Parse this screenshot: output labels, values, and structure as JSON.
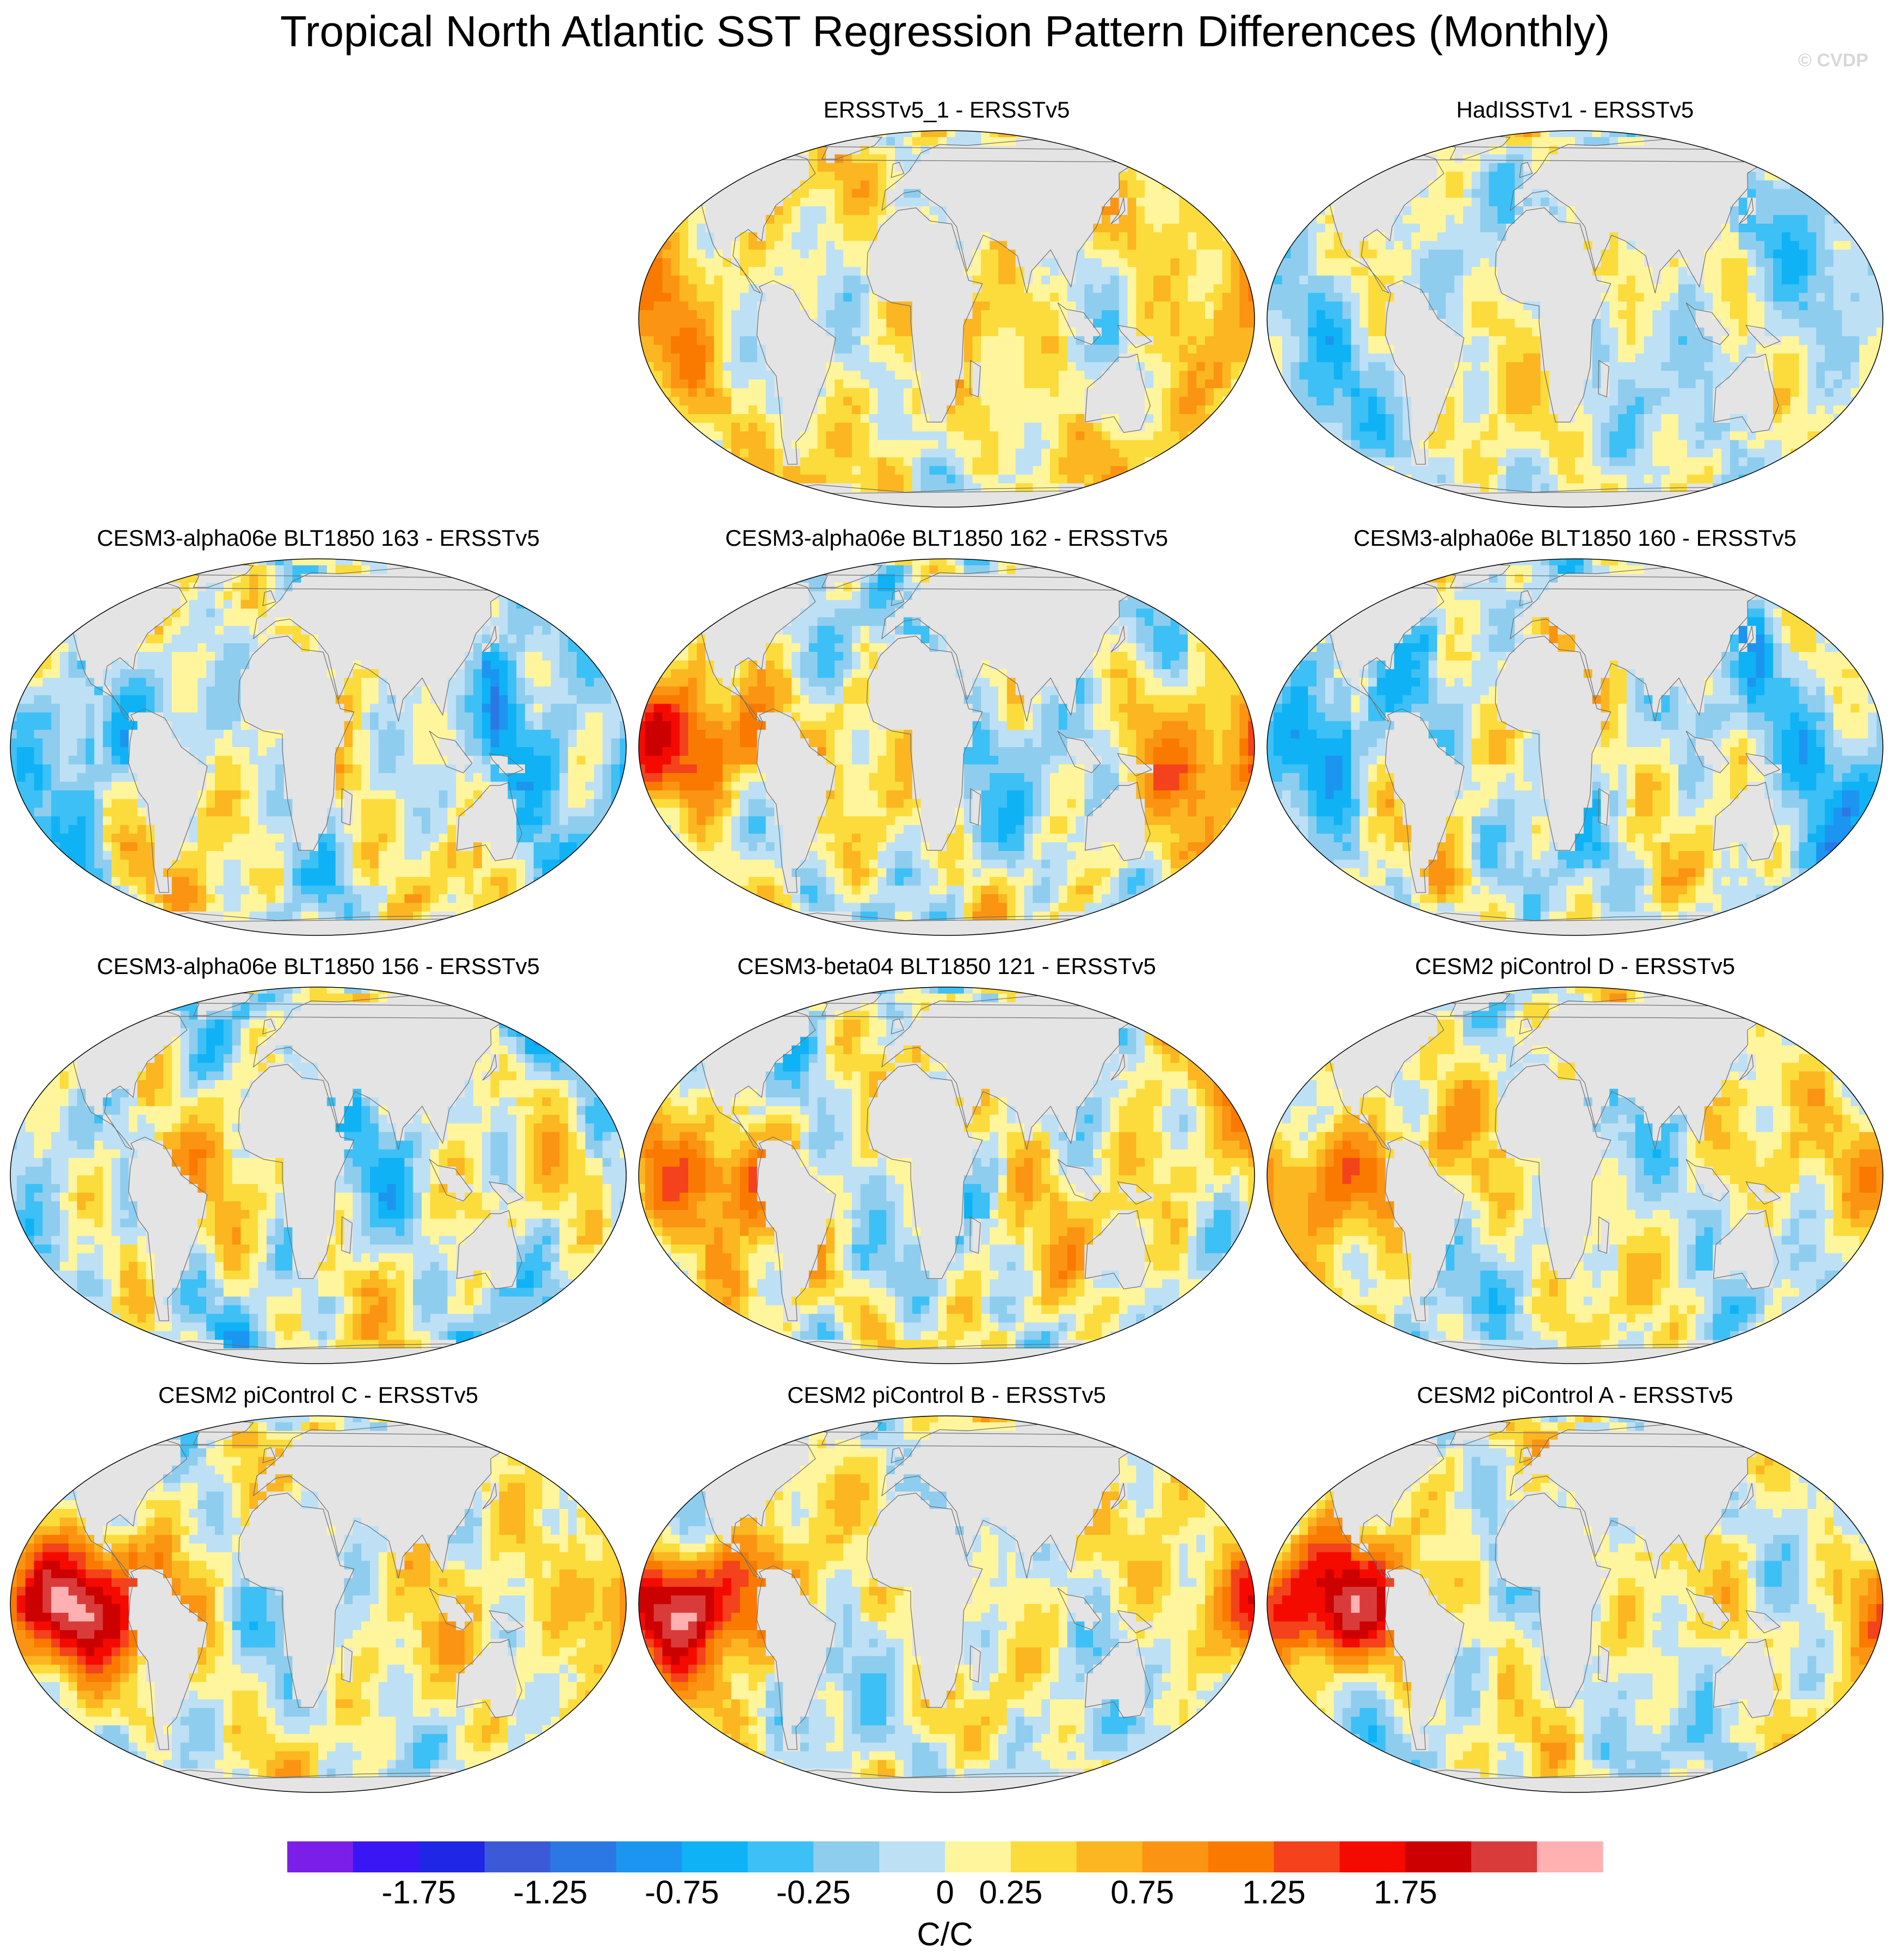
{
  "title": "Tropical North Atlantic SST Regression Pattern Differences (Monthly)",
  "watermark": "© CVDP",
  "chart_data": {
    "type": "heatmap",
    "projection": "Robinson (global)",
    "fill_value": "land masked in light gray",
    "panels": [
      {
        "title": "ERSSTv5_1 - ERSSTv5",
        "dominant": "weak warm / cool mix"
      },
      {
        "title": "HadISSTv1 - ERSSTv5",
        "dominant": "weak warm / cool mix"
      },
      {
        "title": "CESM3-alpha06e BLT1850 163 - ERSSTv5",
        "dominant": "cool Pacific"
      },
      {
        "title": "CESM3-alpha06e BLT1850 162 - ERSSTv5",
        "dominant": "warm eastern Pacific"
      },
      {
        "title": "CESM3-alpha06e BLT1850 160 - ERSSTv5",
        "dominant": "cool Pacific"
      },
      {
        "title": "CESM3-alpha06e BLT1850 156 - ERSSTv5",
        "dominant": "warm / cool mix"
      },
      {
        "title": "CESM3-beta04 BLT1850 121 - ERSSTv5",
        "dominant": "warm eastern Pacific"
      },
      {
        "title": "CESM2 piControl D - ERSSTv5",
        "dominant": "warm eastern Pacific"
      },
      {
        "title": "CESM2 piControl C - ERSSTv5",
        "dominant": "strong warm eastern Pacific"
      },
      {
        "title": "CESM2 piControl B - ERSSTv5",
        "dominant": "strong warm eastern Pacific"
      },
      {
        "title": "CESM2 piControl A - ERSSTv5",
        "dominant": "strong warm eastern Pacific"
      }
    ],
    "colorbar": {
      "levels": [
        -2.0,
        -1.75,
        -1.5,
        -1.25,
        -1.0,
        -0.75,
        -0.5,
        -0.25,
        0,
        0.25,
        0.5,
        0.75,
        1.0,
        1.25,
        1.5,
        1.75,
        2.0
      ],
      "colors": [
        "#7b1fe8",
        "#3a16f5",
        "#1f26e6",
        "#3c5ad8",
        "#2b78e4",
        "#1c95f0",
        "#0fb2f5",
        "#3dc0f5",
        "#8fcdee",
        "#bde0f5",
        "#fff59c",
        "#fbdc3c",
        "#fbb622",
        "#fb9412",
        "#fa7a00",
        "#f3421c",
        "#f50a00",
        "#cc0000",
        "#d93b3b",
        "#ffb0b0"
      ],
      "tick_labels": [
        "-1.75",
        "-1.25",
        "-0.75",
        "-0.25",
        "0",
        "0.25",
        "0.75",
        "1.25",
        "1.75"
      ],
      "units": "C/C"
    }
  }
}
